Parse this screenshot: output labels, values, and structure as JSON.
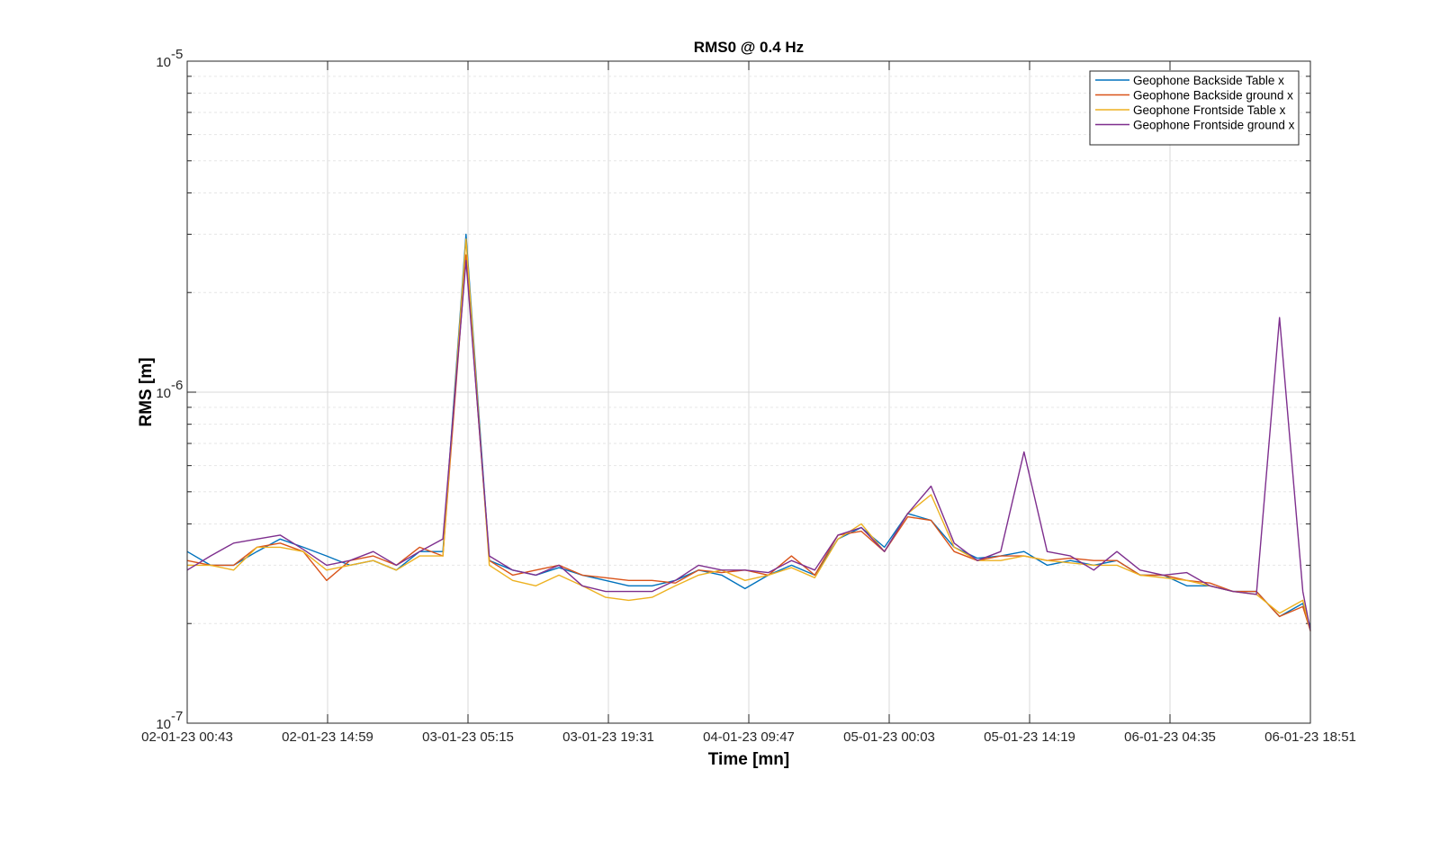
{
  "chart_data": {
    "type": "line",
    "title": "RMS0 @ 0.4 Hz",
    "xlabel": "Time [mn]",
    "ylabel": "RMS [m]",
    "yscale": "log",
    "ylim": [
      1e-07,
      1e-05
    ],
    "ytick_labels": [
      {
        "value": 1e-07,
        "base": "10",
        "exp": "-7"
      },
      {
        "value": 1e-06,
        "base": "10",
        "exp": "-6"
      },
      {
        "value": 1e-05,
        "base": "10",
        "exp": "-5"
      }
    ],
    "x": [
      "02-01-23 00:43",
      "02-01-23 03:05",
      "02-01-23 05:26",
      "02-01-23 07:48",
      "02-01-23 10:10",
      "02-01-23 12:31",
      "02-01-23 14:53",
      "02-01-23 17:15",
      "02-01-23 19:37",
      "02-01-23 21:58",
      "03-01-23 00:20",
      "03-01-23 02:42",
      "03-01-23 05:03",
      "03-01-23 07:25",
      "03-01-23 09:47",
      "03-01-23 12:09",
      "03-01-23 14:30",
      "03-01-23 16:52",
      "03-01-23 19:14",
      "03-01-23 21:35",
      "03-01-23 23:57",
      "04-01-23 02:19",
      "04-01-23 04:41",
      "04-01-23 07:02",
      "04-01-23 09:24",
      "04-01-23 11:46",
      "04-01-23 14:07",
      "04-01-23 16:29",
      "04-01-23 18:51",
      "04-01-23 21:13",
      "04-01-23 23:34",
      "05-01-23 01:56",
      "05-01-23 04:18",
      "05-01-23 06:39",
      "05-01-23 09:01",
      "05-01-23 11:23",
      "05-01-23 13:45",
      "05-01-23 16:06",
      "05-01-23 18:28",
      "05-01-23 20:50",
      "05-01-23 23:11",
      "06-01-23 01:33",
      "06-01-23 03:55",
      "06-01-23 06:17",
      "06-01-23 08:38",
      "06-01-23 11:00",
      "06-01-23 13:22",
      "06-01-23 15:43",
      "06-01-23 18:05",
      "06-01-23 18:51"
    ],
    "xticks": [
      "02-01-23 00:43",
      "02-01-23 14:59",
      "03-01-23 05:15",
      "03-01-23 19:31",
      "04-01-23 09:47",
      "05-01-23 00:03",
      "05-01-23 14:19",
      "06-01-23 04:35",
      "06-01-23 18:51"
    ],
    "grid": true,
    "legend_position": "top-right",
    "series": [
      {
        "name": "Geophone Backside Table x",
        "color": "#0072BD",
        "values": [
          3.3e-07,
          3e-07,
          3e-07,
          3.3e-07,
          3.6e-07,
          3.4e-07,
          3.2e-07,
          3e-07,
          3.1e-07,
          2.9e-07,
          3.3e-07,
          3.3e-07,
          3e-06,
          3.1e-07,
          2.9e-07,
          2.8e-07,
          2.95e-07,
          2.8e-07,
          2.7e-07,
          2.6e-07,
          2.6e-07,
          2.7e-07,
          2.9e-07,
          2.8e-07,
          2.55e-07,
          2.8e-07,
          3e-07,
          2.8e-07,
          3.6e-07,
          3.9e-07,
          3.4e-07,
          4.3e-07,
          4.1e-07,
          3.4e-07,
          3.15e-07,
          3.2e-07,
          3.3e-07,
          3e-07,
          3.1e-07,
          3e-07,
          3.1e-07,
          2.8e-07,
          2.8e-07,
          2.6e-07,
          2.6e-07,
          2.5e-07,
          2.5e-07,
          2.1e-07,
          2.3e-07,
          1.95e-07
        ]
      },
      {
        "name": "Geophone Backside ground x",
        "color": "#D95319",
        "values": [
          3.1e-07,
          3e-07,
          3e-07,
          3.4e-07,
          3.5e-07,
          3.3e-07,
          2.7e-07,
          3.1e-07,
          3.2e-07,
          3e-07,
          3.4e-07,
          3.2e-07,
          2.6e-06,
          3.1e-07,
          2.8e-07,
          2.9e-07,
          3e-07,
          2.8e-07,
          2.75e-07,
          2.7e-07,
          2.7e-07,
          2.65e-07,
          2.9e-07,
          2.85e-07,
          2.9e-07,
          2.8e-07,
          3.2e-07,
          2.8e-07,
          3.7e-07,
          3.8e-07,
          3.3e-07,
          4.2e-07,
          4.1e-07,
          3.3e-07,
          3.1e-07,
          3.2e-07,
          3.2e-07,
          3.1e-07,
          3.15e-07,
          3.1e-07,
          3.1e-07,
          2.8e-07,
          2.8e-07,
          2.7e-07,
          2.65e-07,
          2.5e-07,
          2.5e-07,
          2.1e-07,
          2.25e-07,
          1.9e-07
        ]
      },
      {
        "name": "Geophone Frontside Table x",
        "color": "#EDB120",
        "values": [
          3e-07,
          3e-07,
          2.9e-07,
          3.4e-07,
          3.4e-07,
          3.3e-07,
          2.9e-07,
          3e-07,
          3.1e-07,
          2.9e-07,
          3.2e-07,
          3.2e-07,
          2.9e-06,
          3e-07,
          2.7e-07,
          2.6e-07,
          2.8e-07,
          2.6e-07,
          2.4e-07,
          2.35e-07,
          2.4e-07,
          2.6e-07,
          2.8e-07,
          2.9e-07,
          2.7e-07,
          2.8e-07,
          2.95e-07,
          2.75e-07,
          3.6e-07,
          4e-07,
          3.3e-07,
          4.3e-07,
          4.9e-07,
          3.4e-07,
          3.1e-07,
          3.1e-07,
          3.2e-07,
          3.1e-07,
          3.05e-07,
          3e-07,
          3e-07,
          2.8e-07,
          2.75e-07,
          2.7e-07,
          2.6e-07,
          2.5e-07,
          2.45e-07,
          2.15e-07,
          2.35e-07,
          1.9e-07
        ]
      },
      {
        "name": "Geophone Frontside ground x",
        "color": "#7E2F8E",
        "values": [
          2.9e-07,
          3.2e-07,
          3.5e-07,
          3.6e-07,
          3.7e-07,
          3.35e-07,
          3e-07,
          3.1e-07,
          3.3e-07,
          3e-07,
          3.3e-07,
          3.6e-07,
          2.5e-06,
          3.2e-07,
          2.9e-07,
          2.8e-07,
          3e-07,
          2.6e-07,
          2.5e-07,
          2.5e-07,
          2.5e-07,
          2.7e-07,
          3e-07,
          2.9e-07,
          2.9e-07,
          2.85e-07,
          3.1e-07,
          2.9e-07,
          3.7e-07,
          3.9e-07,
          3.3e-07,
          4.3e-07,
          5.2e-07,
          3.5e-07,
          3.1e-07,
          3.3e-07,
          6.6e-07,
          3.3e-07,
          3.2e-07,
          2.9e-07,
          3.3e-07,
          2.9e-07,
          2.8e-07,
          2.85e-07,
          2.6e-07,
          2.5e-07,
          2.45e-07,
          1.68e-06,
          2.5e-07,
          1.9e-07
        ]
      }
    ]
  }
}
